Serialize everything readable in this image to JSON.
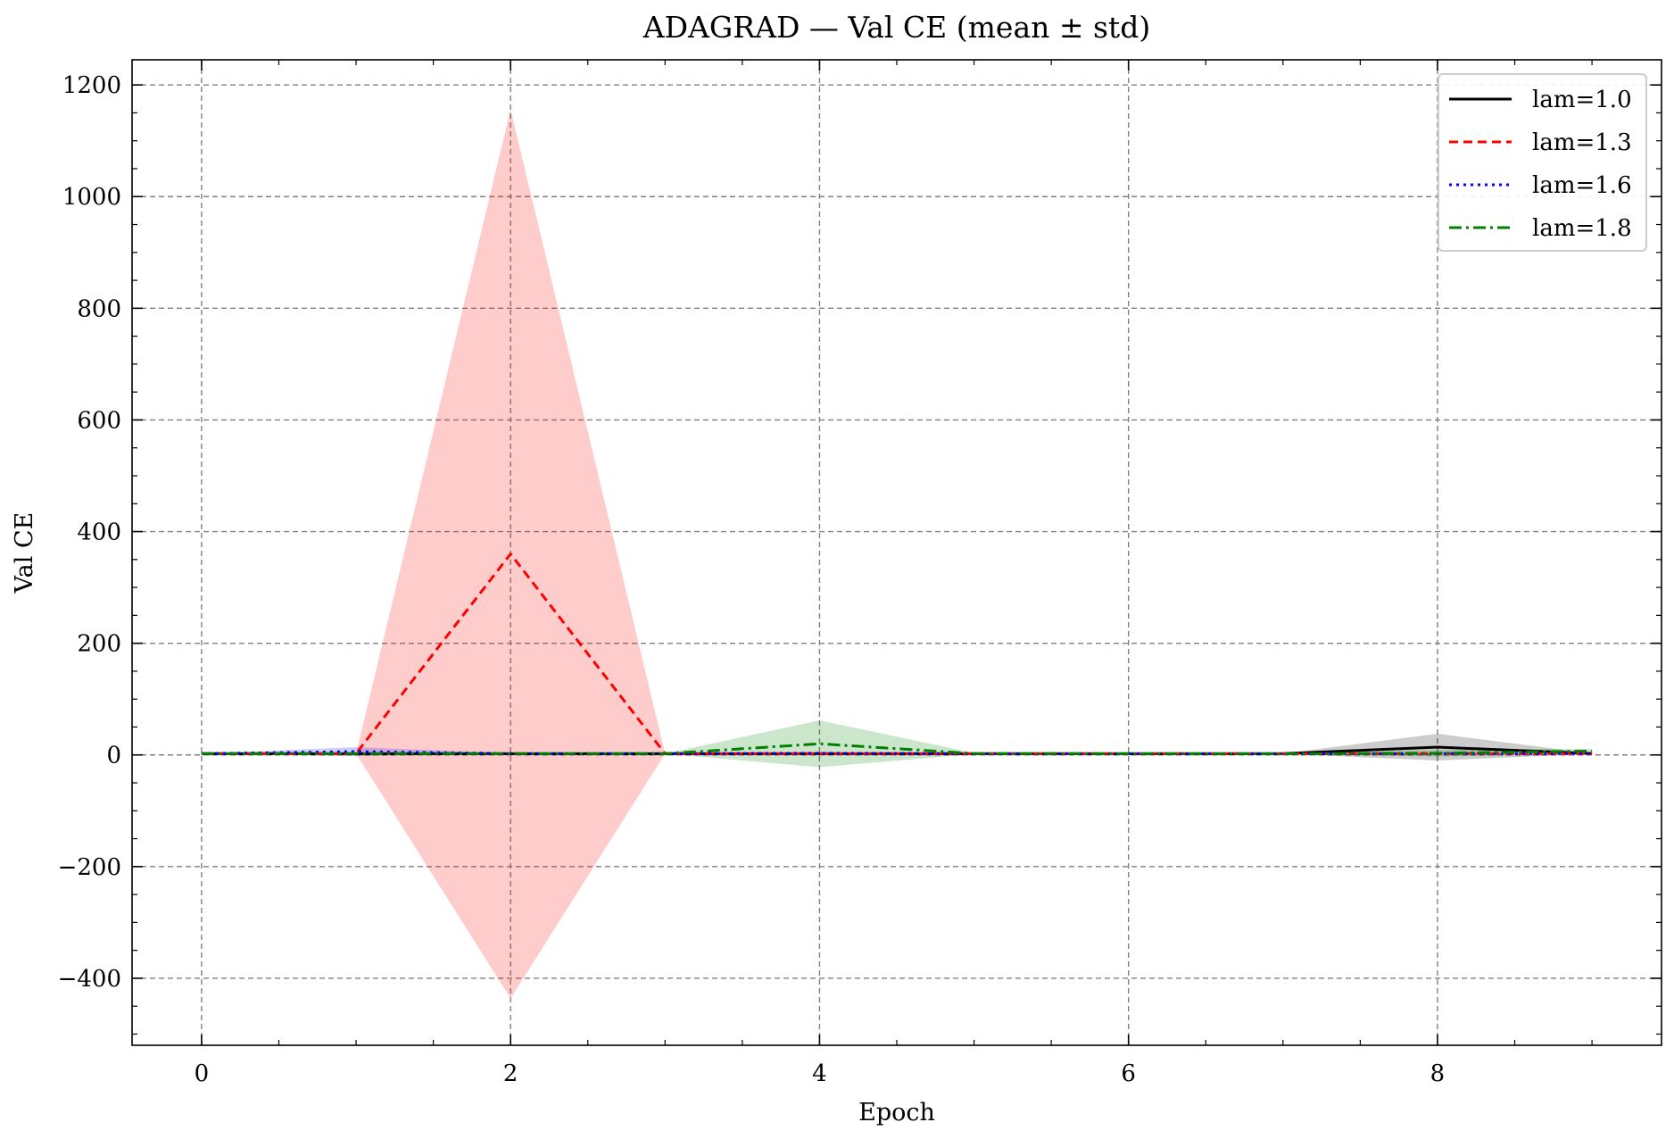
{
  "chart_data": {
    "type": "line",
    "title": "ADAGRAD — Val CE (mean ± std)",
    "xlabel": "Epoch",
    "ylabel": "Val CE",
    "xlim": [
      -0.45,
      9.45
    ],
    "ylim": [
      -520,
      1245
    ],
    "x_ticks": [
      0,
      2,
      4,
      6,
      8
    ],
    "y_ticks": [
      -400,
      -200,
      0,
      200,
      400,
      600,
      800,
      1000,
      1200
    ],
    "y_tick_labels": [
      "−400",
      "−200",
      "0",
      "200",
      "400",
      "600",
      "800",
      "1000",
      "1200"
    ],
    "grid": true,
    "legend_position": "top-right",
    "x": [
      0,
      1,
      2,
      3,
      4,
      5,
      6,
      7,
      8,
      9
    ],
    "series": [
      {
        "name": "lam=1.0",
        "color": "#000000",
        "style": "solid",
        "mean": [
          2.3,
          2.2,
          2.2,
          2.2,
          2.2,
          2.2,
          2.2,
          2.3,
          14,
          2.5
        ],
        "std": [
          0.1,
          0.1,
          0.1,
          0.1,
          0.1,
          0.1,
          0.1,
          0.2,
          24,
          0.3
        ]
      },
      {
        "name": "lam=1.3",
        "color": "#ff0000",
        "style": "dashed",
        "mean": [
          2.3,
          2.5,
          360,
          2.3,
          2.2,
          2.2,
          2.2,
          2.2,
          2.3,
          2.3
        ],
        "std": [
          0.1,
          0.3,
          796,
          0.2,
          0.2,
          0.1,
          0.1,
          0.1,
          0.2,
          0.2
        ]
      },
      {
        "name": "lam=1.6",
        "color": "#0000ff",
        "style": "dotted",
        "mean": [
          2.3,
          6,
          2.5,
          2.3,
          3,
          2.2,
          2.2,
          2.2,
          2.3,
          2.3
        ],
        "std": [
          0.1,
          8,
          0.5,
          0.2,
          2,
          0.1,
          0.1,
          0.1,
          0.2,
          0.2
        ]
      },
      {
        "name": "lam=1.8",
        "color": "#008000",
        "style": "dashdot",
        "mean": [
          2.3,
          2.4,
          2.3,
          2.2,
          20,
          2.5,
          2.2,
          2.2,
          3,
          7
        ],
        "std": [
          0.1,
          0.2,
          0.1,
          0.1,
          42,
          1,
          0.1,
          0.1,
          6,
          4
        ]
      }
    ]
  }
}
